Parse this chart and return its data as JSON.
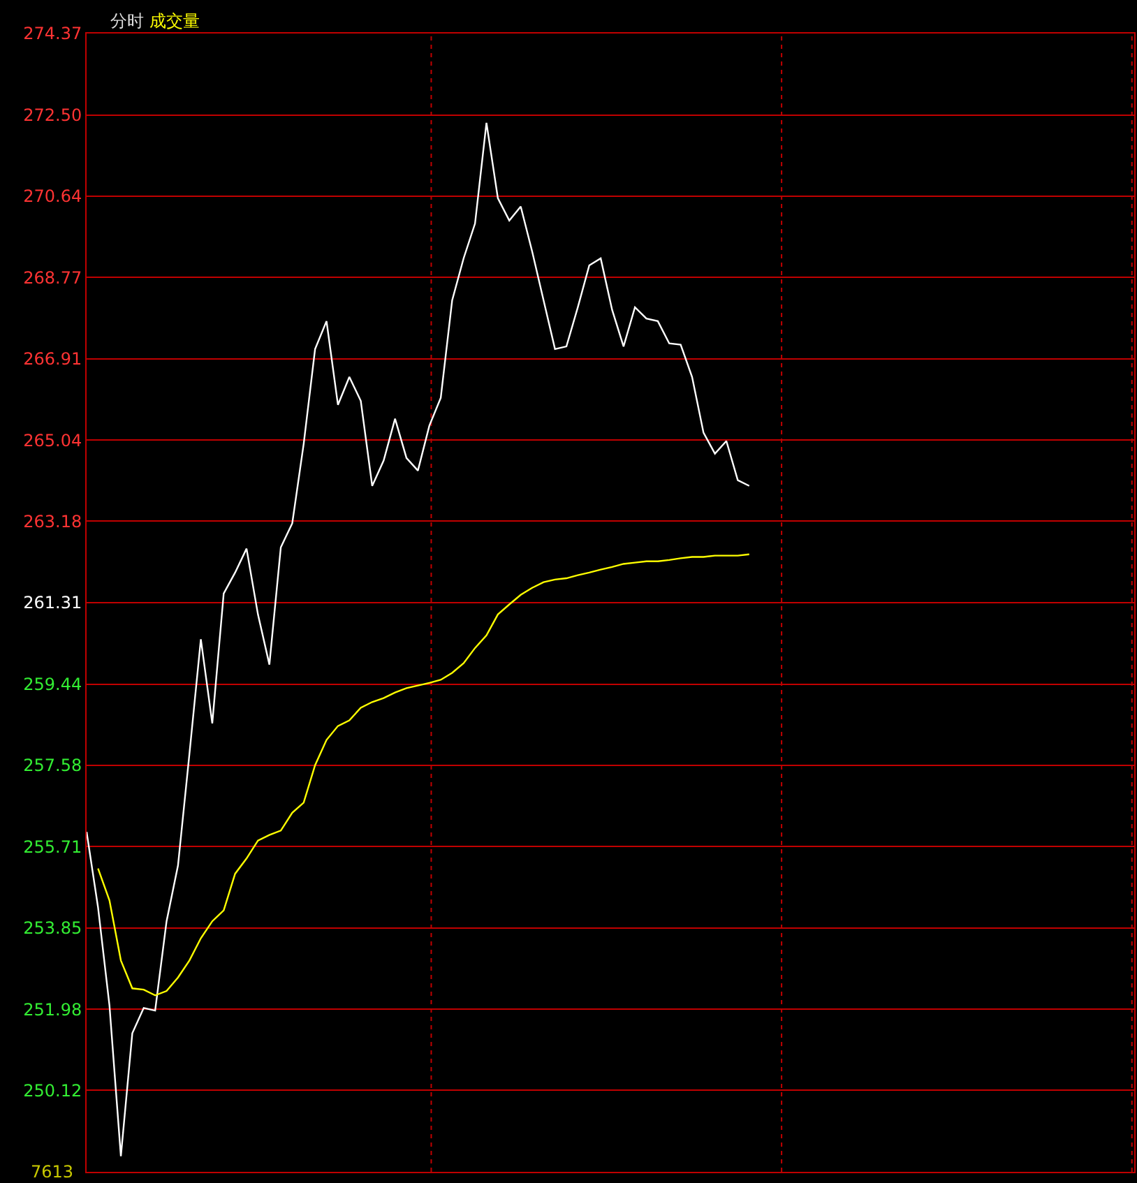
{
  "chart_data": {
    "type": "line",
    "title": "分时",
    "subtitle": "成交量",
    "categories": [
      null,
      null,
      null,
      null,
      null,
      null,
      null,
      null,
      null,
      null,
      null,
      null,
      null,
      null,
      null,
      null,
      null,
      null,
      null,
      null,
      null,
      null,
      null,
      null,
      null,
      null,
      null,
      null,
      null,
      null,
      null,
      null,
      null,
      null,
      null,
      null,
      null,
      null,
      null,
      null,
      null,
      null,
      null,
      null,
      null,
      null,
      null,
      null,
      null,
      null,
      null,
      null,
      null,
      null,
      null,
      null,
      null,
      null,
      null,
      null,
      null,
      null,
      null,
      null,
      null,
      null,
      null,
      null,
      null,
      null,
      null,
      null,
      null,
      null,
      null,
      null,
      null,
      null,
      null,
      null,
      null,
      null,
      null,
      null,
      null,
      null,
      null,
      null,
      null,
      null,
      null,
      null
    ],
    "series": [
      {
        "color": "#ffffff",
        "values": [
          256.05,
          254.32,
          252.07,
          248.61,
          251.43,
          252.01,
          251.95,
          254.0,
          255.28,
          257.84,
          260.47,
          258.54,
          261.52,
          262.0,
          262.55,
          261.04,
          259.89,
          262.58,
          263.13,
          264.95,
          267.13,
          267.77,
          265.85,
          266.49,
          265.94,
          263.99,
          264.57,
          265.53,
          264.63,
          264.34,
          265.37,
          266.01,
          268.25,
          269.21,
          270.01,
          272.32,
          270.59,
          270.08,
          270.4,
          269.37,
          268.25,
          267.13,
          267.19,
          268.09,
          269.05,
          269.21,
          268.03,
          267.19,
          268.09,
          267.83,
          267.77,
          267.26,
          267.23,
          266.49,
          265.21,
          264.73,
          265.02,
          264.12,
          263.99,
          null,
          null,
          null,
          null,
          null,
          null,
          null,
          null,
          null,
          null,
          null,
          null,
          null,
          null,
          null,
          null,
          null,
          null,
          null,
          null,
          null,
          null,
          null,
          null,
          null,
          null,
          null,
          null,
          null,
          null,
          null,
          null,
          null
        ]
      },
      {
        "color": "#ffff00",
        "values": [
          null,
          255.21,
          254.48,
          253.1,
          252.46,
          252.43,
          252.3,
          252.4,
          252.71,
          253.1,
          253.61,
          254.0,
          254.25,
          255.09,
          255.44,
          255.85,
          255.98,
          256.08,
          256.49,
          256.72,
          257.58,
          258.16,
          258.48,
          258.61,
          258.9,
          259.03,
          259.12,
          259.25,
          259.35,
          259.41,
          259.47,
          259.54,
          259.7,
          259.92,
          260.27,
          260.56,
          261.04,
          261.27,
          261.49,
          261.65,
          261.78,
          261.84,
          261.87,
          261.94,
          262.0,
          262.07,
          262.13,
          262.2,
          262.23,
          262.26,
          262.26,
          262.29,
          262.33,
          262.36,
          262.36,
          262.39,
          262.39,
          262.39,
          262.42,
          null,
          null,
          null,
          null,
          null,
          null,
          null,
          null,
          null,
          null,
          null,
          null,
          null,
          null,
          null,
          null,
          null,
          null,
          null,
          null,
          null,
          null,
          null,
          null,
          null,
          null,
          null,
          null,
          null,
          null,
          null,
          null,
          null
        ]
      }
    ],
    "ylim": [
      248.25,
      274.37
    ],
    "yticks": [
      250.12,
      251.98,
      253.85,
      255.71,
      257.58,
      259.44,
      261.31,
      263.18,
      265.04,
      266.91,
      268.77,
      270.64,
      {
        "value": 272.5,
        "label": "272.50"
      },
      274.37
    ],
    "annotations": [
      "7613"
    ],
    "grid": true,
    "marker": "none",
    "line_style": "solid"
  }
}
